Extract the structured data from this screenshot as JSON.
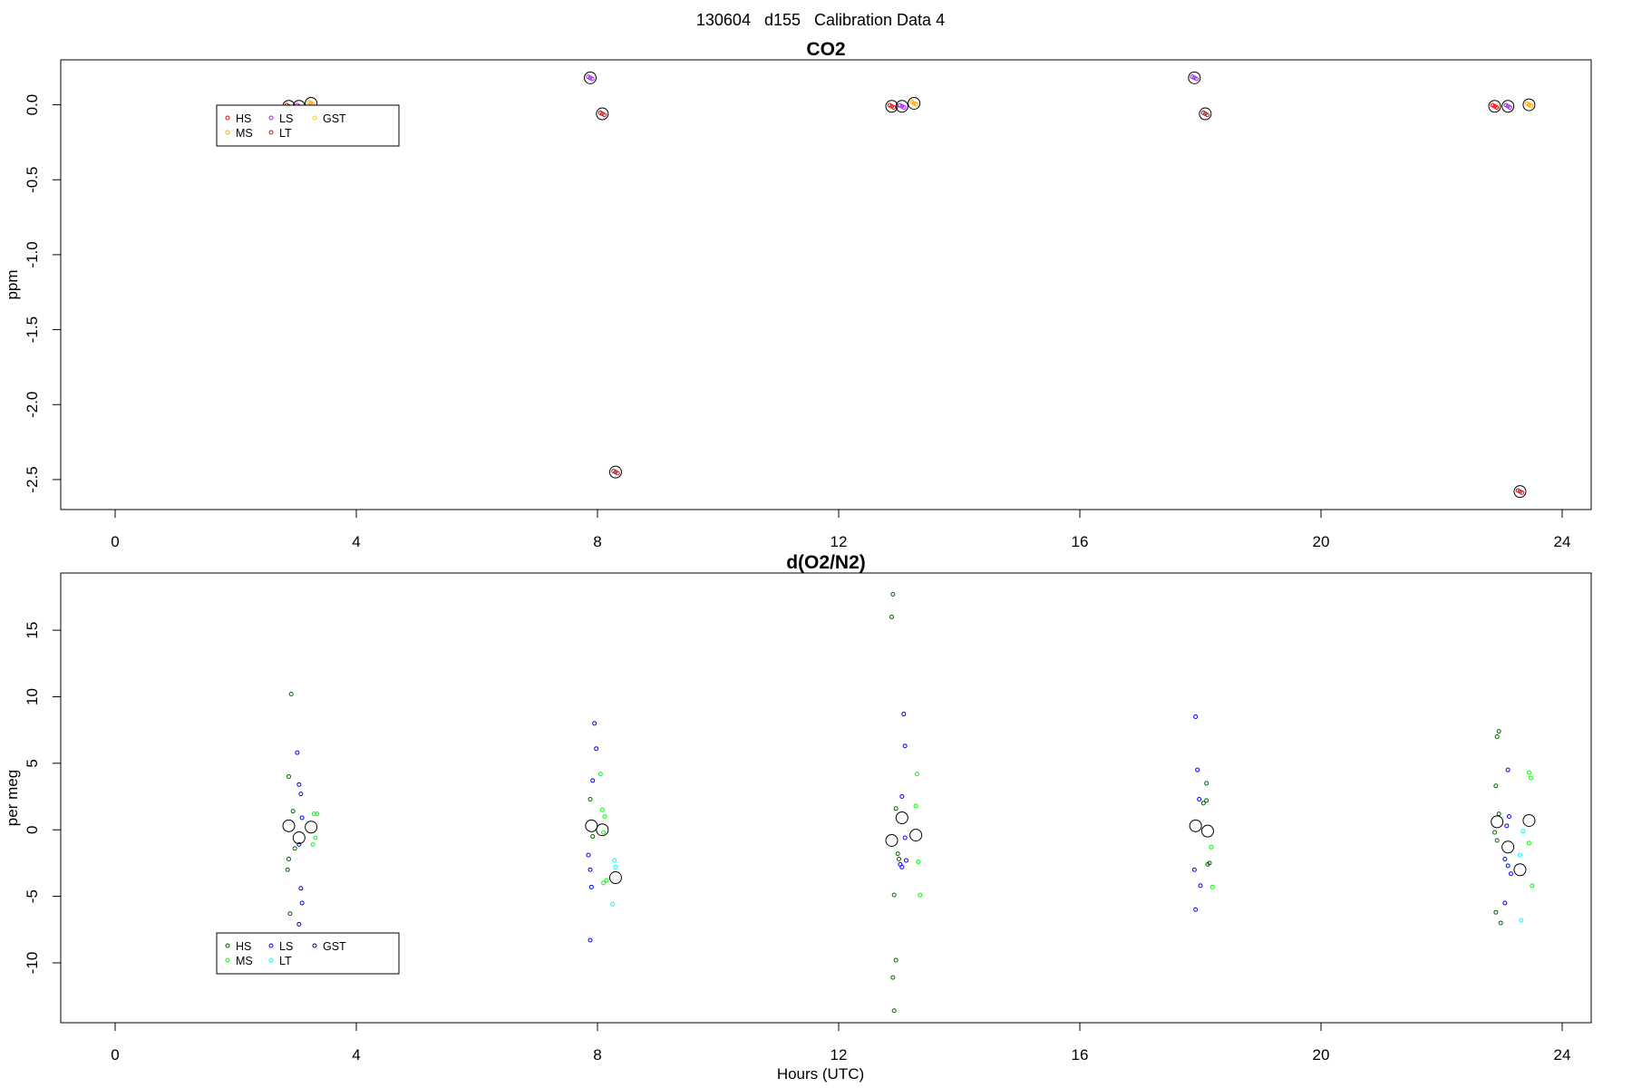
{
  "figure": {
    "super_title": "130604   d155   Calibration Data 4",
    "xlabel_bottom": "Hours (UTC)"
  },
  "chart_data": [
    {
      "type": "scatter",
      "title": "CO2",
      "xlabel": "",
      "ylabel": "ppm",
      "xlim": [
        -1.8,
        24.5
      ],
      "ylim": [
        -2.7,
        0.3
      ],
      "xticks": [
        0,
        4,
        8,
        12,
        16,
        20,
        24
      ],
      "xtick_labels": [
        "0",
        "4",
        "8",
        "12",
        "16",
        "20",
        "24"
      ],
      "yticks": [
        0.0,
        -0.5,
        -1.0,
        -1.5,
        -2.0,
        -2.5
      ],
      "ytick_labels": [
        "0.0",
        "-0.5",
        "-1.0",
        "-1.5",
        "-2.0",
        "-2.5"
      ],
      "legend": {
        "position": "top-left",
        "columns": 3
      },
      "series": [
        {
          "name": "HS",
          "color": "#ff0000",
          "marker": "circle",
          "x": [
            2.88,
            12.88,
            22.88
          ],
          "y": [
            -0.01,
            -0.01,
            -0.01
          ],
          "mean_y": [
            -0.01,
            -0.01,
            -0.01
          ]
        },
        {
          "name": "MS",
          "color": "#ffa500",
          "marker": "circle",
          "x": [
            3.25,
            13.25,
            23.45
          ],
          "y": [
            0.01,
            0.01,
            0.0
          ],
          "mean_y": [
            0.01,
            0.01,
            0.0
          ]
        },
        {
          "name": "LS",
          "color": "#a020f0",
          "marker": "circle",
          "x": [
            3.05,
            7.88,
            13.05,
            17.9,
            23.1
          ],
          "y": [
            -0.01,
            0.18,
            -0.01,
            0.18,
            -0.01
          ],
          "mean_y": [
            -0.01,
            0.18,
            -0.01,
            0.18,
            -0.01
          ]
        },
        {
          "name": "LT",
          "color": "#b22222",
          "marker": "circle",
          "x": [
            8.3,
            23.3
          ],
          "y": [
            -2.45,
            -2.58
          ],
          "mean_y": [
            -2.45,
            -2.58
          ]
        },
        {
          "name": "GST",
          "color": "#ffd700",
          "marker": "circle",
          "x": [],
          "y": [],
          "mean_y": []
        },
        {
          "name": "",
          "color": "#b22222",
          "marker": "circle",
          "x": [
            8.08,
            18.08
          ],
          "y": [
            -0.06,
            -0.06
          ],
          "mean_y": [
            -0.06,
            -0.06
          ]
        }
      ]
    },
    {
      "type": "scatter",
      "title": "d(O2/N2)",
      "xlabel": "Hours (UTC)",
      "ylabel": "per meg",
      "xlim": [
        -1.8,
        24.5
      ],
      "ylim": [
        -14.5,
        19.3
      ],
      "xticks": [
        0,
        4,
        8,
        12,
        16,
        20,
        24
      ],
      "xtick_labels": [
        "0",
        "4",
        "8",
        "12",
        "16",
        "20",
        "24"
      ],
      "yticks": [
        15,
        10,
        5,
        0,
        -5,
        -10
      ],
      "ytick_labels": [
        "15",
        "10",
        "5",
        "0",
        "-5",
        "-10"
      ],
      "legend": {
        "position": "bottom-left",
        "columns": 3
      },
      "series": [
        {
          "name": "HS",
          "color": "#006400",
          "marker": "circle",
          "points": [
            [
              2.92,
              10.2
            ],
            [
              2.88,
              4.0
            ],
            [
              2.95,
              1.4
            ],
            [
              2.88,
              -2.2
            ],
            [
              2.86,
              -3.0
            ],
            [
              2.98,
              -1.4
            ],
            [
              2.9,
              -6.3
            ],
            [
              7.88,
              2.3
            ],
            [
              7.92,
              -0.5
            ],
            [
              12.9,
              17.7
            ],
            [
              12.88,
              16.0
            ],
            [
              12.95,
              1.6
            ],
            [
              12.98,
              -1.8
            ],
            [
              13.0,
              -2.2
            ],
            [
              12.92,
              -4.9
            ],
            [
              12.95,
              -9.8
            ],
            [
              12.9,
              -11.1
            ],
            [
              12.92,
              -13.6
            ],
            [
              18.05,
              2.0
            ],
            [
              18.1,
              3.5
            ],
            [
              18.12,
              -2.6
            ],
            [
              18.15,
              -2.5
            ],
            [
              18.1,
              2.2
            ],
            [
              22.92,
              7.0
            ],
            [
              22.95,
              7.4
            ],
            [
              22.9,
              3.3
            ],
            [
              22.95,
              1.2
            ],
            [
              22.88,
              -0.2
            ],
            [
              22.92,
              -0.8
            ],
            [
              22.9,
              -6.2
            ],
            [
              22.98,
              -7.0
            ]
          ],
          "mean_points": [
            [
              2.88,
              0.3
            ],
            [
              12.88,
              -0.8
            ],
            [
              22.92,
              0.6
            ]
          ]
        },
        {
          "name": "MS",
          "color": "#00ff00",
          "marker": "circle",
          "points": [
            [
              3.3,
              1.2
            ],
            [
              3.35,
              1.2
            ],
            [
              3.32,
              -0.6
            ],
            [
              3.28,
              -1.1
            ],
            [
              8.05,
              4.2
            ],
            [
              8.08,
              1.5
            ],
            [
              8.12,
              1.0
            ],
            [
              8.1,
              -0.2
            ],
            [
              8.15,
              -3.8
            ],
            [
              8.1,
              -4.0
            ],
            [
              13.3,
              4.2
            ],
            [
              13.28,
              1.8
            ],
            [
              13.32,
              -2.4
            ],
            [
              13.35,
              -4.9
            ],
            [
              18.18,
              -1.3
            ],
            [
              18.2,
              -4.3
            ],
            [
              23.45,
              4.3
            ],
            [
              23.48,
              3.9
            ],
            [
              23.45,
              -1.0
            ],
            [
              23.5,
              -4.2
            ]
          ],
          "mean_points": [
            [
              3.25,
              0.2
            ],
            [
              8.08,
              0.0
            ],
            [
              13.28,
              -0.4
            ],
            [
              18.12,
              -0.1
            ],
            [
              23.45,
              0.7
            ]
          ]
        },
        {
          "name": "LS",
          "color": "#0000ff",
          "marker": "circle",
          "points": [
            [
              3.02,
              5.8
            ],
            [
              3.05,
              3.4
            ],
            [
              3.08,
              2.7
            ],
            [
              3.1,
              0.9
            ],
            [
              3.05,
              -1.1
            ],
            [
              3.08,
              -4.4
            ],
            [
              3.1,
              -5.5
            ],
            [
              3.05,
              -7.1
            ],
            [
              7.95,
              8.0
            ],
            [
              7.98,
              6.1
            ],
            [
              7.92,
              3.7
            ],
            [
              7.85,
              -1.9
            ],
            [
              7.88,
              -3.0
            ],
            [
              7.9,
              -4.3
            ],
            [
              7.88,
              -8.3
            ],
            [
              13.08,
              8.7
            ],
            [
              13.1,
              6.3
            ],
            [
              13.05,
              2.5
            ],
            [
              13.1,
              -0.6
            ],
            [
              13.12,
              -2.3
            ],
            [
              13.02,
              -2.6
            ],
            [
              13.05,
              -2.8
            ],
            [
              17.92,
              8.5
            ],
            [
              17.95,
              4.5
            ],
            [
              17.98,
              2.3
            ],
            [
              17.9,
              -3.0
            ],
            [
              18.0,
              -4.2
            ],
            [
              17.92,
              -6.0
            ],
            [
              23.1,
              4.5
            ],
            [
              23.12,
              1.0
            ],
            [
              23.08,
              0.3
            ],
            [
              23.05,
              -2.2
            ],
            [
              23.1,
              -2.7
            ],
            [
              23.15,
              -3.3
            ],
            [
              23.05,
              -5.5
            ]
          ],
          "mean_points": [
            [
              3.05,
              -0.6
            ],
            [
              7.9,
              0.3
            ],
            [
              13.05,
              0.9
            ],
            [
              17.92,
              0.3
            ],
            [
              23.1,
              -1.3
            ]
          ]
        },
        {
          "name": "LT",
          "color": "#00ffff",
          "marker": "circle",
          "points": [
            [
              8.28,
              -2.3
            ],
            [
              8.3,
              -2.8
            ],
            [
              8.25,
              -5.6
            ],
            [
              23.35,
              -0.1
            ],
            [
              23.3,
              -1.9
            ],
            [
              23.32,
              -6.8
            ]
          ],
          "mean_points": [
            [
              8.3,
              -3.6
            ],
            [
              23.3,
              -3.0
            ]
          ]
        },
        {
          "name": "GST",
          "color": "#00008b",
          "marker": "circle",
          "points": [],
          "mean_points": []
        }
      ]
    }
  ]
}
